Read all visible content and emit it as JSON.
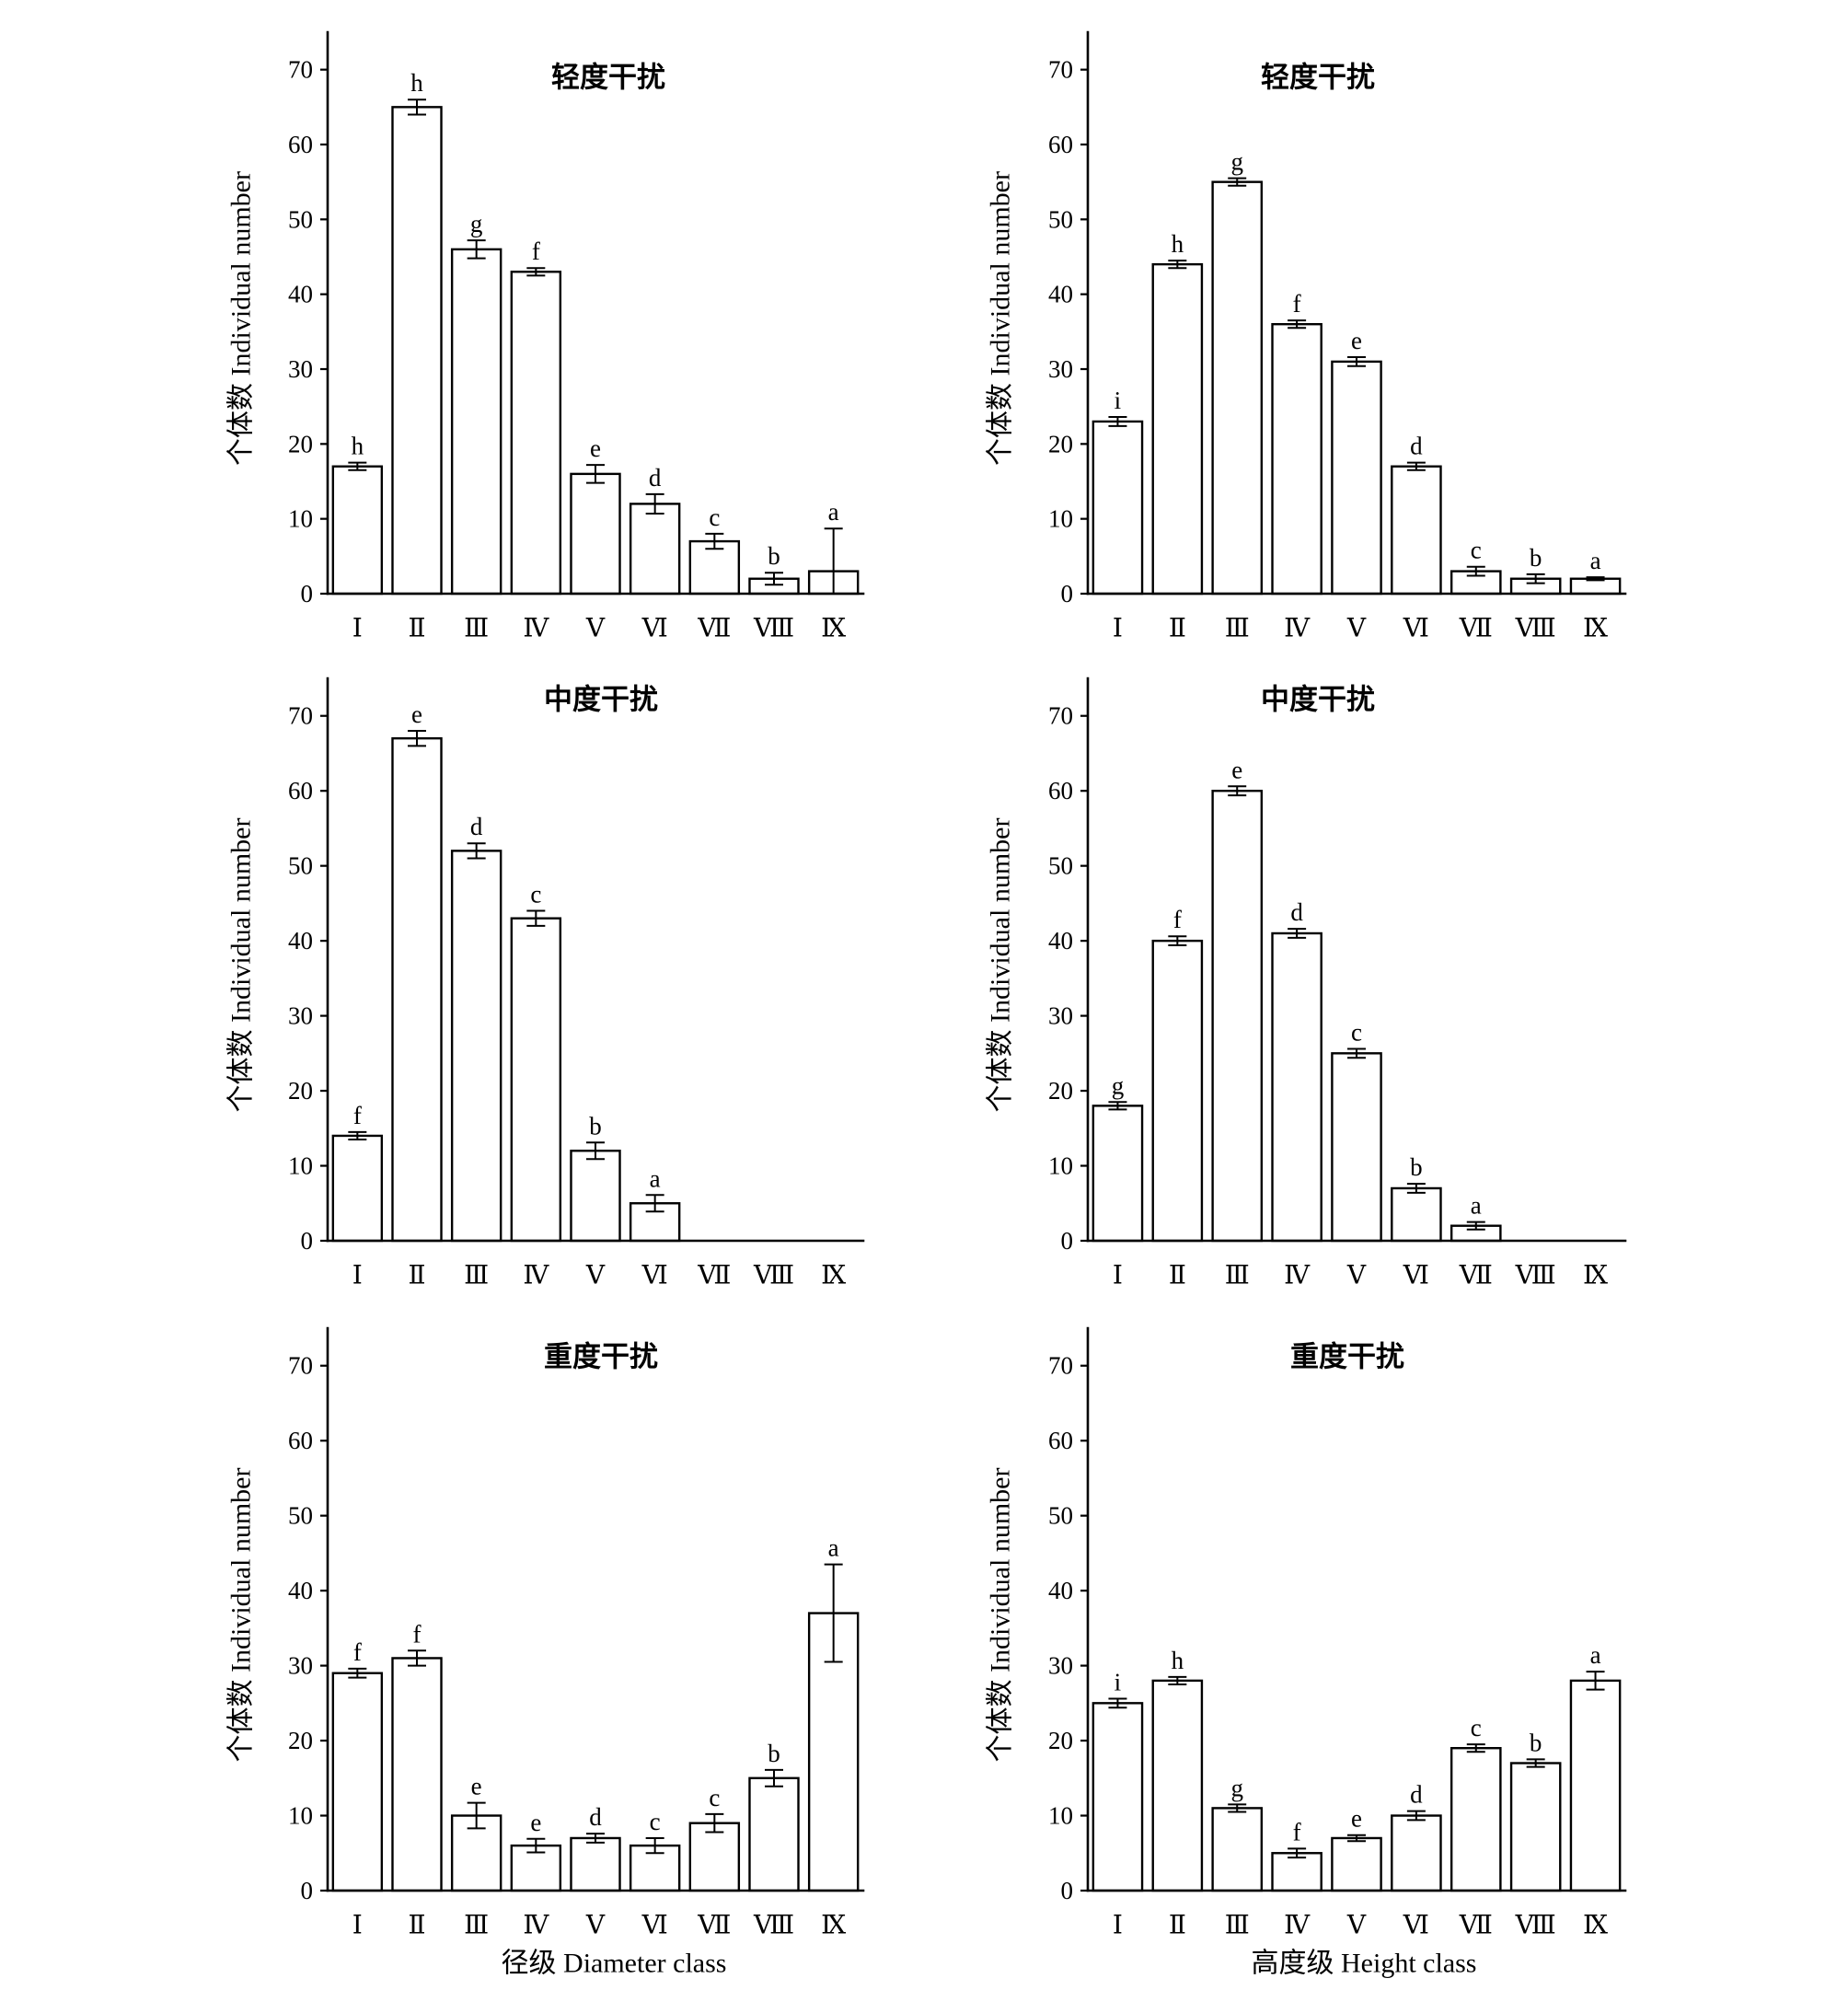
{
  "colors": {
    "background": "#ffffff",
    "bar_fill": "#ffffff",
    "line": "#000000"
  },
  "chart_data": [
    {
      "type": "bar",
      "title": "轻度干扰",
      "ylabel": "个体数 Individual number",
      "ylim": [
        0,
        75
      ],
      "yticks": [
        0,
        10,
        20,
        30,
        40,
        50,
        60,
        70
      ],
      "categories": [
        "Ⅰ",
        "Ⅱ",
        "Ⅲ",
        "Ⅳ",
        "Ⅴ",
        "Ⅵ",
        "Ⅶ",
        "Ⅷ",
        "Ⅸ"
      ],
      "values": [
        17,
        65,
        46,
        43,
        16,
        12,
        7,
        2,
        3
      ],
      "errors": [
        0.5,
        1,
        1.2,
        0.5,
        1.2,
        1.3,
        1,
        0.8,
        5.7
      ],
      "letters": [
        "h",
        "h",
        "g",
        "f",
        "e",
        "d",
        "c",
        "b",
        "a"
      ]
    },
    {
      "type": "bar",
      "title": "轻度干扰",
      "ylabel": "个体数 Individual number",
      "ylim": [
        0,
        75
      ],
      "yticks": [
        0,
        10,
        20,
        30,
        40,
        50,
        60,
        70
      ],
      "categories": [
        "Ⅰ",
        "Ⅱ",
        "Ⅲ",
        "Ⅳ",
        "Ⅴ",
        "Ⅵ",
        "Ⅶ",
        "Ⅷ",
        "Ⅸ"
      ],
      "values": [
        23,
        44,
        55,
        36,
        31,
        17,
        3,
        2,
        2
      ],
      "errors": [
        0.6,
        0.5,
        0.5,
        0.5,
        0.6,
        0.5,
        0.6,
        0.6,
        0.2
      ],
      "letters": [
        "i",
        "h",
        "g",
        "f",
        "e",
        "d",
        "c",
        "b",
        "a"
      ]
    },
    {
      "type": "bar",
      "title": "中度干扰",
      "ylabel": "个体数 Individual number",
      "ylim": [
        0,
        75
      ],
      "yticks": [
        0,
        10,
        20,
        30,
        40,
        50,
        60,
        70
      ],
      "categories": [
        "Ⅰ",
        "Ⅱ",
        "Ⅲ",
        "Ⅳ",
        "Ⅴ",
        "Ⅵ",
        "Ⅶ",
        "Ⅷ",
        "Ⅸ"
      ],
      "values": [
        14,
        67,
        52,
        43,
        12,
        5,
        0,
        0,
        0
      ],
      "errors": [
        0.5,
        1,
        1,
        1,
        1.1,
        1.1,
        0,
        0,
        0
      ],
      "letters": [
        "f",
        "e",
        "d",
        "c",
        "b",
        "a",
        "",
        "",
        ""
      ]
    },
    {
      "type": "bar",
      "title": "中度干扰",
      "ylabel": "个体数 Individual number",
      "ylim": [
        0,
        75
      ],
      "yticks": [
        0,
        10,
        20,
        30,
        40,
        50,
        60,
        70
      ],
      "categories": [
        "Ⅰ",
        "Ⅱ",
        "Ⅲ",
        "Ⅳ",
        "Ⅴ",
        "Ⅵ",
        "Ⅶ",
        "Ⅷ",
        "Ⅸ"
      ],
      "values": [
        18,
        40,
        60,
        41,
        25,
        7,
        2,
        0,
        0
      ],
      "errors": [
        0.5,
        0.6,
        0.6,
        0.6,
        0.6,
        0.6,
        0.5,
        0,
        0
      ],
      "letters": [
        "g",
        "f",
        "e",
        "d",
        "c",
        "b",
        "a",
        "",
        ""
      ]
    },
    {
      "type": "bar",
      "title": "重度干扰",
      "ylabel": "个体数 Individual number",
      "xlabel": "径级 Diameter class",
      "ylim": [
        0,
        75
      ],
      "yticks": [
        0,
        10,
        20,
        30,
        40,
        50,
        60,
        70
      ],
      "categories": [
        "Ⅰ",
        "Ⅱ",
        "Ⅲ",
        "Ⅳ",
        "Ⅴ",
        "Ⅵ",
        "Ⅶ",
        "Ⅷ",
        "Ⅸ"
      ],
      "values": [
        29,
        31,
        10,
        6,
        7,
        6,
        9,
        15,
        37
      ],
      "errors": [
        0.6,
        1,
        1.7,
        0.9,
        0.6,
        1,
        1.2,
        1.1,
        6.5
      ],
      "letters": [
        "f",
        "f",
        "e",
        "e",
        "d",
        "c",
        "c",
        "b",
        "a"
      ]
    },
    {
      "type": "bar",
      "title": "重度干扰",
      "ylabel": "个体数 Individual number",
      "xlabel": "高度级 Height class",
      "ylim": [
        0,
        75
      ],
      "yticks": [
        0,
        10,
        20,
        30,
        40,
        50,
        60,
        70
      ],
      "categories": [
        "Ⅰ",
        "Ⅱ",
        "Ⅲ",
        "Ⅳ",
        "Ⅴ",
        "Ⅵ",
        "Ⅶ",
        "Ⅷ",
        "Ⅸ"
      ],
      "values": [
        25,
        28,
        11,
        5,
        7,
        10,
        19,
        17,
        28
      ],
      "errors": [
        0.6,
        0.5,
        0.5,
        0.6,
        0.4,
        0.6,
        0.5,
        0.5,
        1.2
      ],
      "letters": [
        "i",
        "h",
        "g",
        "f",
        "e",
        "d",
        "c",
        "b",
        "a"
      ]
    }
  ]
}
